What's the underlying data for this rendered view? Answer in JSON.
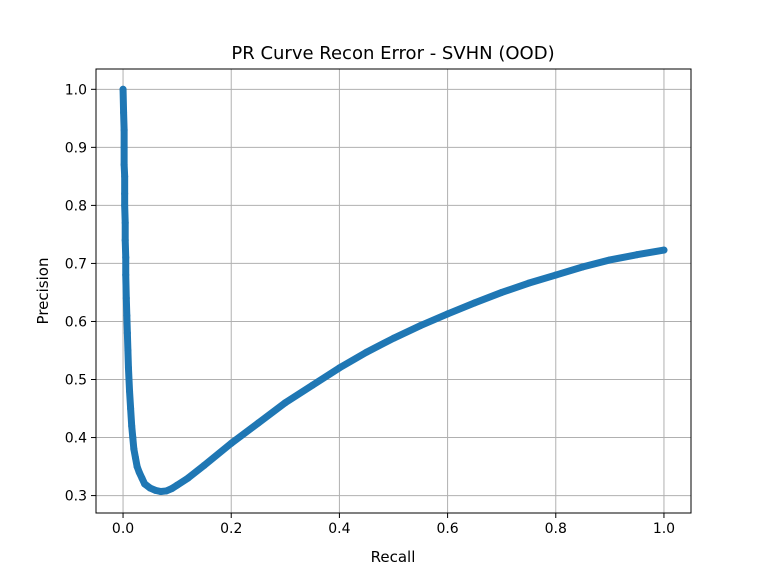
{
  "chart_data": {
    "type": "line",
    "title": "PR Curve Recon Error - SVHN (OOD)",
    "xlabel": "Recall",
    "ylabel": "Precision",
    "xlim": [
      -0.05,
      1.05
    ],
    "ylim": [
      0.27,
      1.035
    ],
    "grid": true,
    "x_ticks": [
      0.0,
      0.2,
      0.4,
      0.6,
      0.8,
      1.0
    ],
    "x_tick_labels": [
      "0.0",
      "0.2",
      "0.4",
      "0.6",
      "0.8",
      "1.0"
    ],
    "y_ticks": [
      0.3,
      0.4,
      0.5,
      0.6,
      0.7,
      0.8,
      0.9,
      1.0
    ],
    "y_tick_labels": [
      "0.3",
      "0.4",
      "0.5",
      "0.6",
      "0.7",
      "0.8",
      "0.9",
      "1.0"
    ],
    "series": [
      {
        "color": "#1f77b4",
        "marker": "circle",
        "x": [
          0.0,
          0.001,
          0.002,
          0.002,
          0.002,
          0.003,
          0.003,
          0.003,
          0.004,
          0.004,
          0.005,
          0.005,
          0.006,
          0.007,
          0.008,
          0.009,
          0.01,
          0.012,
          0.014,
          0.016,
          0.018,
          0.02,
          0.023,
          0.026,
          0.03,
          0.035,
          0.04,
          0.05,
          0.06,
          0.07,
          0.08,
          0.09,
          0.1,
          0.12,
          0.15,
          0.2,
          0.25,
          0.3,
          0.35,
          0.4,
          0.45,
          0.5,
          0.55,
          0.6,
          0.65,
          0.7,
          0.75,
          0.8,
          0.85,
          0.9,
          0.95,
          1.0
        ],
        "y": [
          1.0,
          0.96,
          0.93,
          0.9,
          0.87,
          0.85,
          0.82,
          0.8,
          0.77,
          0.74,
          0.71,
          0.68,
          0.64,
          0.61,
          0.58,
          0.55,
          0.52,
          0.48,
          0.45,
          0.42,
          0.4,
          0.38,
          0.365,
          0.35,
          0.34,
          0.33,
          0.32,
          0.313,
          0.309,
          0.307,
          0.308,
          0.312,
          0.318,
          0.33,
          0.352,
          0.39,
          0.425,
          0.46,
          0.49,
          0.52,
          0.547,
          0.571,
          0.593,
          0.613,
          0.632,
          0.65,
          0.666,
          0.68,
          0.694,
          0.706,
          0.715,
          0.723
        ]
      }
    ]
  }
}
